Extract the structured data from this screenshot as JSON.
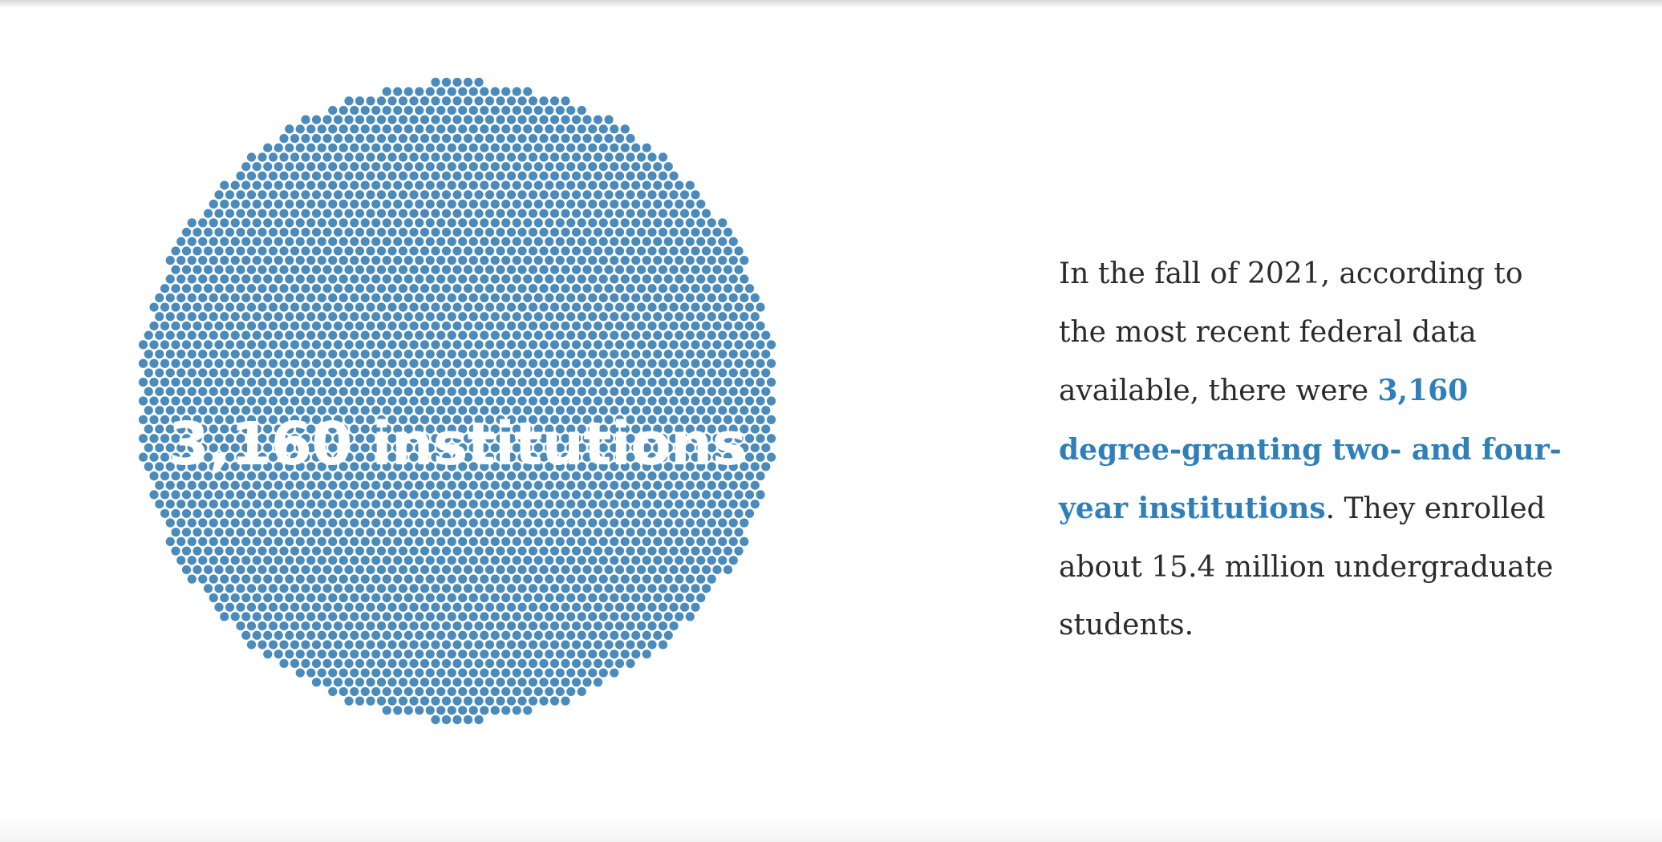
{
  "chart_data": {
    "type": "unit-dot",
    "value": 3160,
    "unit": "institutions",
    "label": "3,160 institutions",
    "dot_color": "#4a8bbb"
  },
  "narrative": {
    "part1": "In the fall of 2021, according to the most recent federal data available, there were ",
    "highlight": "3,160 degree-granting two- and four-year institutions",
    "part2": ". They enrolled about 15.4 million undergraduate students."
  },
  "colors": {
    "accent": "#2f7fb8",
    "text": "#2b2b2b",
    "dots": "#4a8bbb"
  }
}
